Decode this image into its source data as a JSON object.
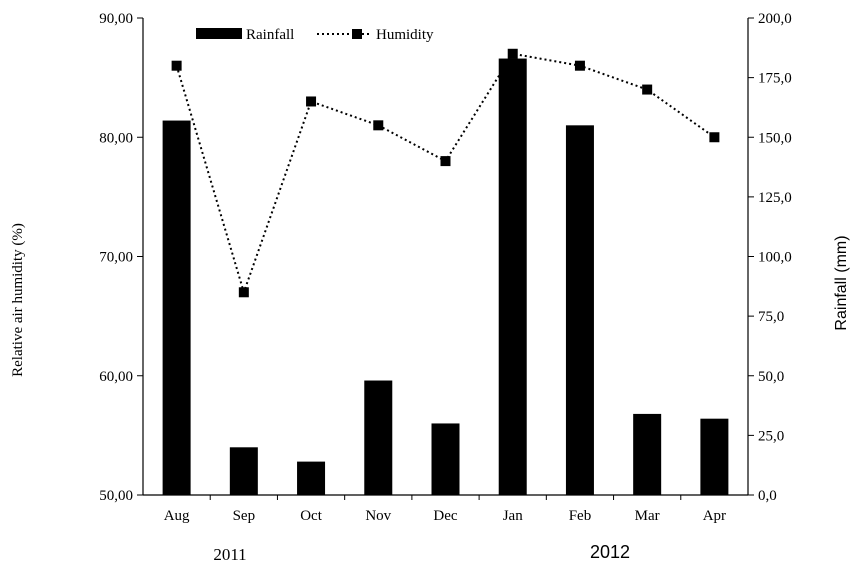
{
  "chart_data": {
    "type": "bar",
    "categories": [
      "Aug",
      "Sep",
      "Oct",
      "Nov",
      "Dec",
      "Jan",
      "Feb",
      "Mar",
      "Apr"
    ],
    "series": [
      {
        "name": "Rainfall",
        "type": "bar",
        "axis": "right",
        "values": [
          157,
          20,
          14,
          48,
          30,
          183,
          155,
          34,
          32
        ]
      },
      {
        "name": "Humidity",
        "type": "line",
        "axis": "left",
        "values": [
          86,
          67,
          83,
          81,
          78,
          87,
          86,
          84,
          80
        ]
      }
    ],
    "ylabel_left": "Relative air humidity (%)",
    "ylabel_right": "Rainfall (mm)",
    "ylim_left": [
      50,
      90
    ],
    "ylim_right": [
      0,
      200
    ],
    "yticks_left": [
      "50,00",
      "60,00",
      "70,00",
      "80,00",
      "90,00"
    ],
    "yticks_right": [
      "0,0",
      "25,0",
      "50,0",
      "75,0",
      "100,0",
      "125,0",
      "150,0",
      "175,0",
      "200,0"
    ],
    "year_labels": [
      "2011",
      "2012"
    ],
    "legend": {
      "position": "top-center",
      "entries": [
        "Rainfall",
        "Humidity"
      ]
    },
    "grid": false,
    "colors": {
      "bar": "#000000",
      "line": "#000000"
    }
  }
}
